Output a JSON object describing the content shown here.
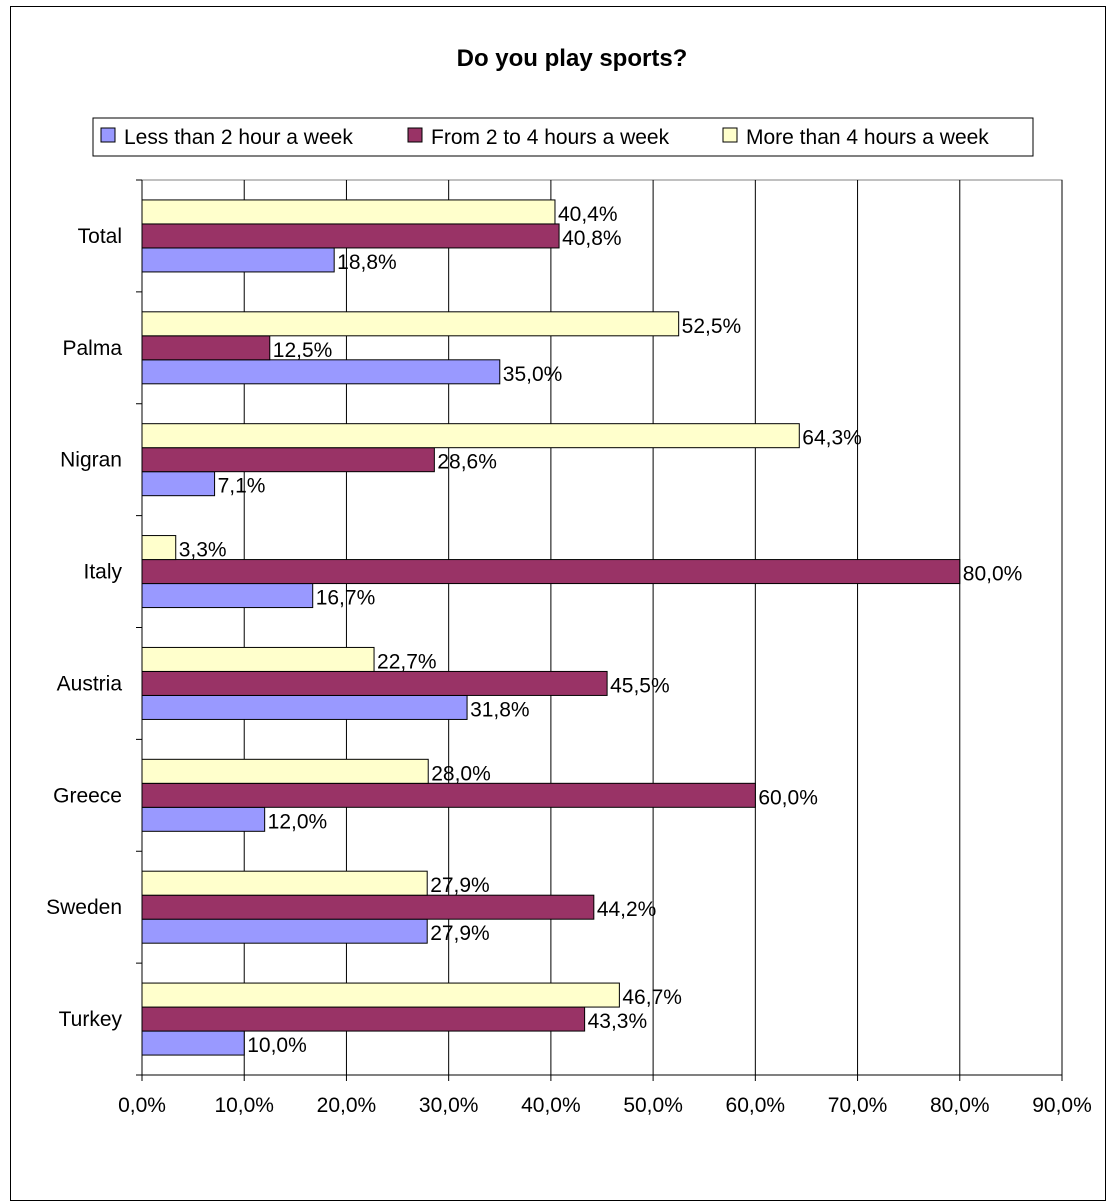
{
  "chart_data": {
    "type": "bar",
    "orientation": "horizontal",
    "title": "Do you play sports?",
    "categories": [
      "Total",
      "Palma",
      "Nigran",
      "Italy",
      "Austria",
      "Greece",
      "Sweden",
      "Turkey"
    ],
    "series": [
      {
        "name": "Less than 2 hour a week",
        "color": "#9999ff",
        "values": [
          18.8,
          35.0,
          7.1,
          16.7,
          31.8,
          12.0,
          27.9,
          10.0
        ],
        "labels": [
          "18,8%",
          "35,0%",
          "7,1%",
          "16,7%",
          "31,8%",
          "12,0%",
          "27,9%",
          "10,0%"
        ]
      },
      {
        "name": "From 2 to 4 hours a week",
        "color": "#993366",
        "values": [
          40.8,
          12.5,
          28.6,
          80.0,
          45.5,
          60.0,
          44.2,
          43.3
        ],
        "labels": [
          "40,8%",
          "12,5%",
          "28,6%",
          "80,0%",
          "45,5%",
          "60,0%",
          "44,2%",
          "43,3%"
        ]
      },
      {
        "name": "More than 4 hours a week",
        "color": "#ffffcc",
        "values": [
          40.4,
          52.5,
          64.3,
          3.3,
          22.7,
          28.0,
          27.9,
          46.7
        ],
        "labels": [
          "40,4%",
          "52,5%",
          "64,3%",
          "3,3%",
          "22,7%",
          "28,0%",
          "27,9%",
          "46,7%"
        ]
      }
    ],
    "xlim": [
      0,
      90
    ],
    "x_ticks": [
      0,
      10,
      20,
      30,
      40,
      50,
      60,
      70,
      80,
      90
    ],
    "x_tick_labels": [
      "0,0%",
      "10,0%",
      "20,0%",
      "30,0%",
      "40,0%",
      "50,0%",
      "60,0%",
      "70,0%",
      "80,0%",
      "90,0%"
    ],
    "grid": true,
    "legend_position": "top"
  }
}
